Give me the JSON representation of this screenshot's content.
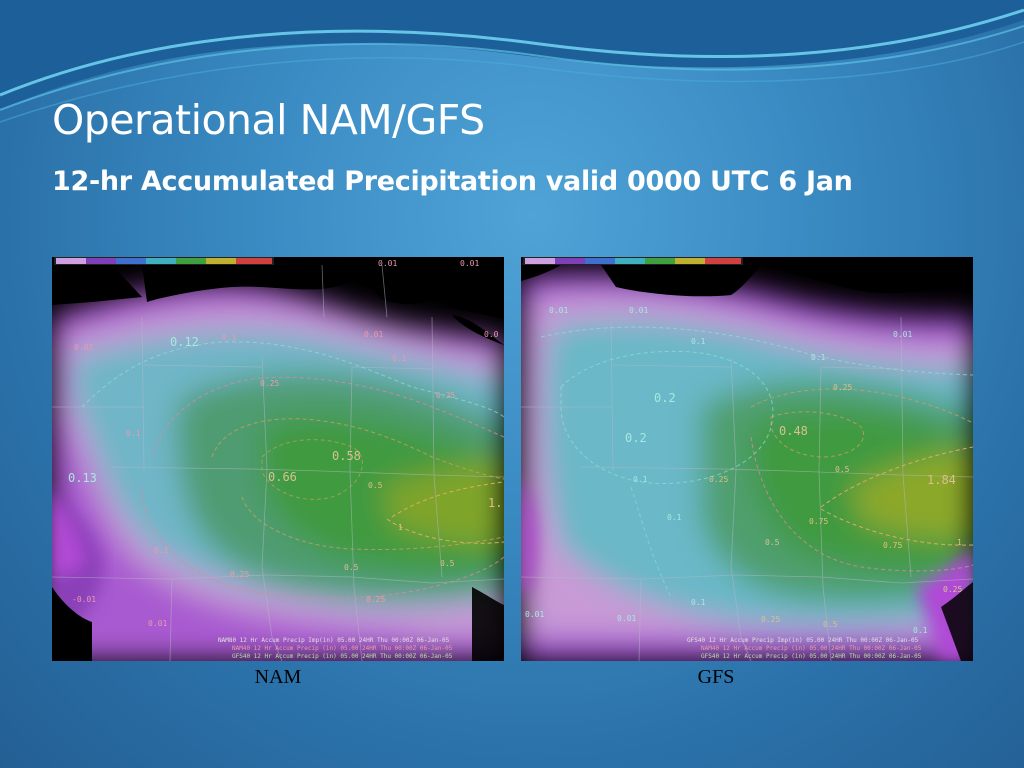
{
  "slide": {
    "title": "Operational NAM/GFS",
    "subtitle": "12-hr Accumulated Precipitation valid 0000 UTC 6 Jan"
  },
  "colors": {
    "background": "#3b8cc4",
    "wave": "#5fc3e6",
    "ocean_mask": "#000000",
    "precip_low": "#a04cc8",
    "precip_mid": "#59b7ba",
    "precip_high": "#3f9f3f",
    "precip_max": "#8fa62a",
    "contour_dashed_low": "#d88aa0",
    "contour_dashed_high": "#c8a060"
  },
  "panels": [
    {
      "id": "nam",
      "caption": "NAM",
      "contour_labels": {
        "v012": "0.12",
        "v013": "0.13",
        "v066": "0.66",
        "v058": "0.58",
        "v01a": "0.1",
        "v01b": "0.1",
        "v01c": "0.1",
        "v01d": "0.1",
        "v001a": "0.01",
        "v001b": "0.01",
        "v001c": "0.01",
        "v001d": "0.01",
        "v001e": "0.01",
        "v001f": "0.01",
        "v001g": "0.0",
        "v025a": "0.25",
        "v025b": "0.25",
        "v025c": "0.25",
        "v025d": "0.25",
        "v05a": "0.5",
        "v05b": "0.5",
        "v05c": "0.5",
        "v1": "1",
        "v1b": "1.",
        "v0_01": "-0.01"
      },
      "footer": {
        "line1": "NAM80 12 Hr Accum Precip Imp(in)    05.00  24HR Thu 00:00Z 06-Jan-05",
        "line2": "NAM40 12 Hr Accum Precip (in)   05.00  24HR Thu 00:00Z 06-Jan-05",
        "line3": "GFS40 12 Hr Accum Precip (in)   05.00  24HR Thu 00:00Z 06-Jan-05"
      }
    },
    {
      "id": "gfs",
      "caption": "GFS",
      "contour_labels": {
        "v02a": "0.2",
        "v02b": "0.2",
        "v048": "0.48",
        "v184": "1.84",
        "v01a": "0.1",
        "v01b": "0.1",
        "v01c": "0.1",
        "v01d": "0.1",
        "v01e": "0.1",
        "v01f": "0.1",
        "v001a": "0.01",
        "v001b": "0.01",
        "v001c": "0.01",
        "v001d": "0.01",
        "v001e": "0.01",
        "v025a": "0.25",
        "v025b": "0.25",
        "v025c": "0.25",
        "v025d": "0.25",
        "v05a": "0.5",
        "v05b": "0.5",
        "v05c": "0.5",
        "v075a": "0.75",
        "v075b": "0.75",
        "v1": "1"
      },
      "footer": {
        "line1": "GFS40 12 Hr Accum Precip Imp(in)    05.00  24HR Thu 00:00Z 06-Jan-05",
        "line2": "NAM40 12 Hr Accum Precip (in)   05.00  24HR Thu 00:00Z 06-Jan-05",
        "line3": "GFS40 12 Hr Accum Precip (in)   05.00  24HR Thu 00:00Z 06-Jan-05"
      }
    }
  ]
}
